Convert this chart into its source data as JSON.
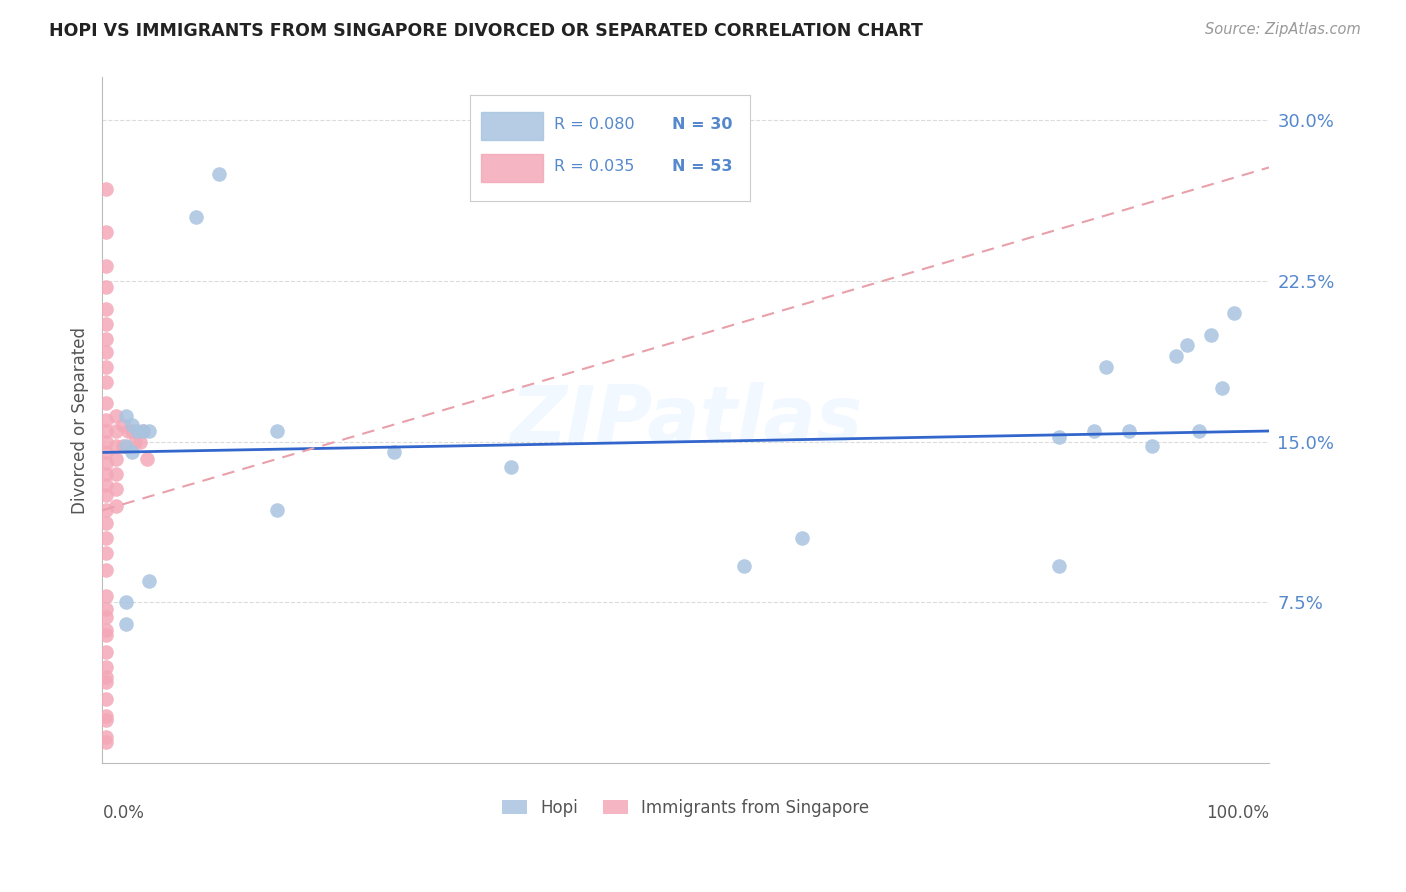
{
  "title": "HOPI VS IMMIGRANTS FROM SINGAPORE DIVORCED OR SEPARATED CORRELATION CHART",
  "source_text": "Source: ZipAtlas.com",
  "ylabel": "Divorced or Separated",
  "ytick_labels": [
    "7.5%",
    "15.0%",
    "22.5%",
    "30.0%"
  ],
  "ytick_values": [
    0.075,
    0.15,
    0.225,
    0.3
  ],
  "xlim": [
    0.0,
    1.0
  ],
  "ylim": [
    0.0,
    0.32
  ],
  "color_blue": "#A8C4E0",
  "color_pink": "#F4A8B8",
  "color_line_blue": "#3366CC",
  "color_line_pink": "#E8A0AA",
  "color_ytick": "#5588CC",
  "watermark_text": "ZIPatlas",
  "legend_r1": "R = 0.080",
  "legend_n1": "N = 30",
  "legend_r2": "R = 0.035",
  "legend_n2": "N = 53",
  "legend_label1": "Hopi",
  "legend_label2": "Immigrants from Singapore",
  "blue_line_x0": 0.0,
  "blue_line_y0": 0.145,
  "blue_line_x1": 1.0,
  "blue_line_y1": 0.155,
  "pink_line_x0": 0.0,
  "pink_line_y0": 0.118,
  "pink_line_x1": 1.0,
  "pink_line_y1": 0.278,
  "hopi_x": [
    0.02,
    0.025,
    0.03,
    0.035,
    0.04,
    0.02,
    0.025,
    0.02,
    0.08,
    0.1,
    0.15,
    0.15,
    0.25,
    0.35,
    0.55,
    0.6,
    0.82,
    0.82,
    0.85,
    0.86,
    0.88,
    0.9,
    0.92,
    0.93,
    0.94,
    0.95,
    0.96,
    0.97,
    0.02,
    0.04
  ],
  "hopi_y": [
    0.162,
    0.158,
    0.155,
    0.155,
    0.155,
    0.148,
    0.145,
    0.075,
    0.255,
    0.275,
    0.155,
    0.118,
    0.145,
    0.138,
    0.092,
    0.105,
    0.152,
    0.092,
    0.155,
    0.185,
    0.155,
    0.148,
    0.19,
    0.195,
    0.155,
    0.2,
    0.175,
    0.21,
    0.065,
    0.085
  ],
  "singapore_x": [
    0.003,
    0.003,
    0.003,
    0.003,
    0.003,
    0.003,
    0.003,
    0.003,
    0.003,
    0.003,
    0.003,
    0.003,
    0.003,
    0.003,
    0.003,
    0.003,
    0.003,
    0.003,
    0.003,
    0.003,
    0.003,
    0.003,
    0.003,
    0.003,
    0.003,
    0.003,
    0.003,
    0.012,
    0.012,
    0.012,
    0.012,
    0.012,
    0.012,
    0.012,
    0.018,
    0.018,
    0.022,
    0.025,
    0.028,
    0.032,
    0.035,
    0.038,
    0.003,
    0.003,
    0.003,
    0.003,
    0.003,
    0.003,
    0.003,
    0.003,
    0.003,
    0.003,
    0.003
  ],
  "singapore_y": [
    0.268,
    0.248,
    0.232,
    0.222,
    0.212,
    0.205,
    0.198,
    0.192,
    0.185,
    0.178,
    0.168,
    0.16,
    0.155,
    0.15,
    0.145,
    0.14,
    0.135,
    0.13,
    0.125,
    0.118,
    0.112,
    0.105,
    0.098,
    0.09,
    0.078,
    0.062,
    0.04,
    0.162,
    0.155,
    0.148,
    0.142,
    0.135,
    0.128,
    0.12,
    0.158,
    0.148,
    0.155,
    0.155,
    0.15,
    0.15,
    0.155,
    0.142,
    0.022,
    0.012,
    0.072,
    0.068,
    0.06,
    0.052,
    0.045,
    0.038,
    0.03,
    0.02,
    0.01
  ]
}
